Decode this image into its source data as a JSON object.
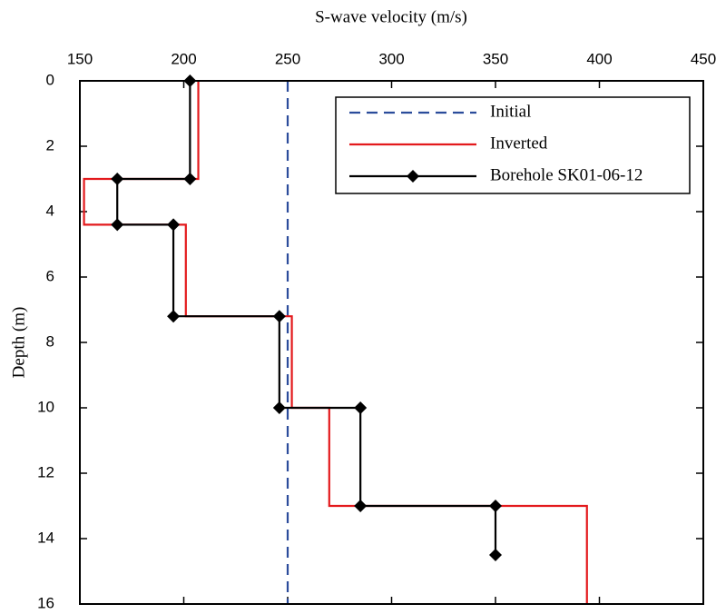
{
  "chart_data": {
    "type": "line",
    "x_label": "S-wave velocity (m/s)",
    "y_label": "Depth (m)",
    "xlim": [
      150,
      450
    ],
    "xticks": [
      150,
      200,
      250,
      300,
      350,
      400,
      450
    ],
    "ylim": [
      0,
      16
    ],
    "yticks": [
      0,
      2,
      4,
      6,
      8,
      10,
      12,
      14,
      16
    ],
    "y_inverted": true,
    "x_axis_position": "top",
    "legend": "top-right",
    "series": [
      {
        "name": "Initial",
        "color": "#2b4c9b",
        "linestyle": "dashed",
        "marker": "none",
        "x": [
          250,
          250
        ],
        "y": [
          0,
          16
        ]
      },
      {
        "name": "Inverted",
        "color": "#e3191c",
        "linestyle": "solid",
        "marker": "none",
        "x": [
          207,
          207,
          152,
          152,
          201,
          201,
          252,
          252,
          270,
          270,
          394,
          394
        ],
        "y": [
          0,
          3,
          3,
          4.4,
          4.4,
          7.2,
          7.2,
          10,
          10,
          13,
          13,
          16
        ]
      },
      {
        "name": "Borehole SK01-06-12",
        "color": "#000000",
        "linestyle": "solid",
        "marker": "diamond",
        "x": [
          203,
          203,
          168,
          168,
          195,
          195,
          246,
          246,
          285,
          285,
          350,
          350
        ],
        "y": [
          0,
          3,
          3,
          4.4,
          4.4,
          7.2,
          7.2,
          10,
          10,
          13,
          13,
          14.5
        ]
      }
    ]
  }
}
